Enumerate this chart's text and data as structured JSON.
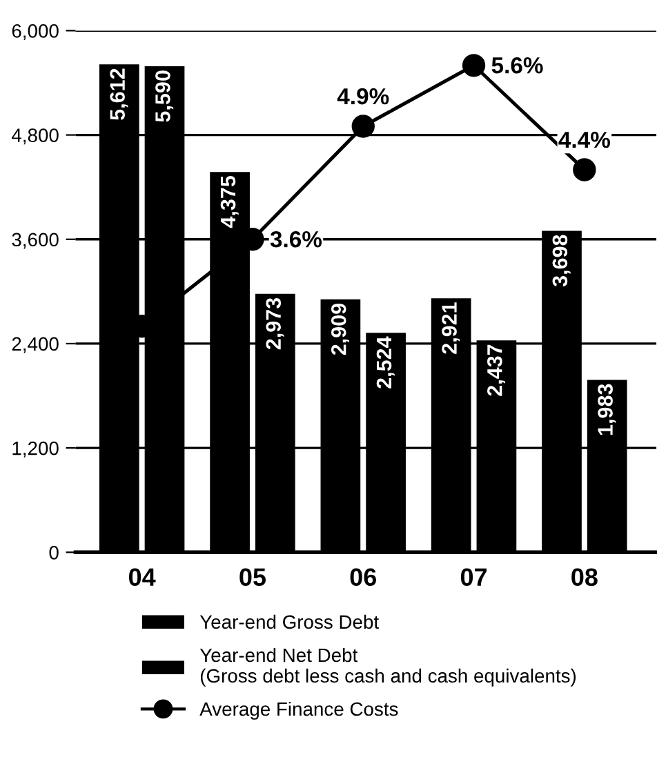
{
  "chart_data": {
    "type": "bar",
    "categories": [
      "04",
      "05",
      "06",
      "07",
      "08"
    ],
    "series": [
      {
        "name": "Year-end Gross Debt",
        "color": "#000000",
        "values": [
          5612,
          4375,
          2909,
          2921,
          3698
        ],
        "value_labels": [
          "5,612",
          "4,375",
          "2,909",
          "2,921",
          "3,698"
        ]
      },
      {
        "name": "Year-end Net Debt\n(Gross debt less cash and cash equivalents)",
        "color": "#000000",
        "values": [
          5590,
          2973,
          2524,
          2437,
          1983
        ],
        "value_labels": [
          "5,590",
          "2,973",
          "2,524",
          "2,437",
          "1,983"
        ]
      },
      {
        "name": "Average Finance Costs",
        "type": "line",
        "axis": "y2",
        "color": "#000000",
        "marker": "circle",
        "values": [
          2.6,
          3.6,
          4.9,
          5.6,
          4.4
        ],
        "value_labels": [
          null,
          "3.6%",
          "4.9%",
          "5.6%",
          "4.4%"
        ]
      }
    ],
    "ylim": [
      0,
      6000
    ],
    "yticks": [
      {
        "value": 0,
        "label": "0"
      },
      {
        "value": 1200,
        "label": "1,200"
      },
      {
        "value": 2400,
        "label": "2,400"
      },
      {
        "value": 3600,
        "label": "3,600"
      },
      {
        "value": 4800,
        "label": "4,800"
      },
      {
        "value": 6000,
        "label": "6,000"
      }
    ],
    "y2lim": [
      0,
      6
    ],
    "tick_labels": "y",
    "grid": "y",
    "legend": "bottom"
  }
}
